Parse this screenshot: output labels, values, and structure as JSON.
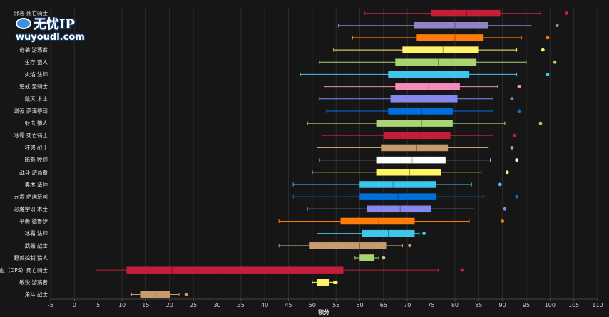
{
  "watermark": {
    "brand": "无忧IP",
    "url": "wuyoudl.com"
  },
  "chart_data": {
    "type": "boxplot",
    "title": "",
    "xlabel": "积分",
    "ylabel": "",
    "xlim": [
      -5,
      110
    ],
    "xticks": [
      -5,
      0,
      5,
      10,
      15,
      20,
      25,
      30,
      35,
      40,
      45,
      50,
      55,
      60,
      65,
      70,
      75,
      80,
      85,
      90,
      95,
      100,
      105,
      110
    ],
    "grid": true,
    "legend": "none",
    "series": [
      {
        "label": "邪恶 死亡骑士",
        "color": "#c41e3a",
        "whisker_low": 61,
        "q1": 75,
        "median": 82.5,
        "q3": 89.5,
        "whisker_high": 98,
        "outliers": [
          103.5
        ]
      },
      {
        "label": "",
        "color": "#9482c9",
        "whisker_low": 55.5,
        "q1": 71.5,
        "median": 80,
        "q3": 87,
        "whisker_high": 96,
        "outliers": [
          101.5
        ]
      },
      {
        "label": "",
        "color": "#ff7c0a",
        "whisker_low": 58.5,
        "q1": 72,
        "median": 80,
        "q3": 86,
        "whisker_high": 94,
        "outliers": [
          99.5
        ]
      },
      {
        "label": "奇袭 游荡者",
        "color": "#fff468",
        "whisker_low": 54.5,
        "q1": 69,
        "median": 77.5,
        "q3": 85,
        "whisker_high": 93,
        "outliers": [
          98.5
        ]
      },
      {
        "label": "生存 猎人",
        "color": "#aad372",
        "whisker_low": 51.5,
        "q1": 67.5,
        "median": 76.5,
        "q3": 84.5,
        "whisker_high": 95,
        "outliers": [
          101
        ]
      },
      {
        "label": "火焰 法师",
        "color": "#3fc7eb",
        "whisker_low": 47.5,
        "q1": 66,
        "median": 75,
        "q3": 83,
        "whisker_high": 93,
        "outliers": [
          99.5
        ]
      },
      {
        "label": "惩戒 圣骑士",
        "color": "#f48cba",
        "whisker_low": 52.5,
        "q1": 67.5,
        "median": 74.5,
        "q3": 81,
        "whisker_high": 89,
        "outliers": [
          93.5
        ]
      },
      {
        "label": "毁灭 术士",
        "color": "#8788ee",
        "whisker_low": 51.5,
        "q1": 66.5,
        "median": 73.5,
        "q3": 80.5,
        "whisker_high": 88,
        "outliers": [
          92
        ]
      },
      {
        "label": "增强 萨满祭司",
        "color": "#0070dd",
        "whisker_low": 53,
        "q1": 66,
        "median": 73,
        "q3": 79.5,
        "whisker_high": 88,
        "outliers": [
          93.5
        ]
      },
      {
        "label": "射击 猎人",
        "color": "#aad372",
        "whisker_low": 49,
        "q1": 63.5,
        "median": 73,
        "q3": 79.5,
        "whisker_high": 90.5,
        "outliers": [
          98
        ]
      },
      {
        "label": "冰霜 死亡骑士",
        "color": "#c41e3a",
        "whisker_low": 52,
        "q1": 65,
        "median": 72.5,
        "q3": 79,
        "whisker_high": 88,
        "outliers": [
          92.5
        ]
      },
      {
        "label": "狂怒 战士",
        "color": "#c69b6d",
        "whisker_low": 51,
        "q1": 64.5,
        "median": 72,
        "q3": 78.5,
        "whisker_high": 87,
        "outliers": [
          92
        ]
      },
      {
        "label": "暗影 牧师",
        "color": "#ffffff",
        "whisker_low": 51.5,
        "q1": 63.5,
        "median": 71,
        "q3": 78,
        "whisker_high": 87.5,
        "outliers": [
          93
        ]
      },
      {
        "label": "战斗 游荡者",
        "color": "#fff468",
        "whisker_low": 50,
        "q1": 63.5,
        "median": 70.5,
        "q3": 77,
        "whisker_high": 85.5,
        "outliers": [
          91
        ]
      },
      {
        "label": "奥术 法师",
        "color": "#3fc7eb",
        "whisker_low": 46,
        "q1": 60,
        "median": 67,
        "q3": 76,
        "whisker_high": 83.5,
        "outliers": [
          89.5
        ]
      },
      {
        "label": "元素 萨满祭司",
        "color": "#0070dd",
        "whisker_low": 46,
        "q1": 60,
        "median": 68,
        "q3": 76,
        "whisker_high": 86,
        "outliers": [
          93
        ]
      },
      {
        "label": "恶魔学识 术士",
        "color": "#8788ee",
        "whisker_low": 49,
        "q1": 61.5,
        "median": 68.5,
        "q3": 75,
        "whisker_high": 84,
        "outliers": [
          90.5
        ]
      },
      {
        "label": "平衡 德鲁伊",
        "color": "#ff7c0a",
        "whisker_low": 43,
        "q1": 56,
        "median": 64,
        "q3": 71.5,
        "whisker_high": 83,
        "outliers": [
          90
        ]
      },
      {
        "label": "冰霜 法师",
        "color": "#3fc7eb",
        "whisker_low": 51,
        "q1": 60.5,
        "median": 66,
        "q3": 71.5,
        "whisker_high": 72.5,
        "outliers": [
          73.5
        ]
      },
      {
        "label": "武器 战士",
        "color": "#c69b6d",
        "whisker_low": 43,
        "q1": 49.5,
        "median": 60,
        "q3": 65.5,
        "whisker_high": 69,
        "outliers": [
          70.5
        ]
      },
      {
        "label": "野兽控制 猎人",
        "color": "#aad372",
        "whisker_low": 59,
        "q1": 60,
        "median": 61.5,
        "q3": 63,
        "whisker_high": 64,
        "outliers": [
          65
        ]
      },
      {
        "label": "鲜血（DPS）死亡骑士",
        "color": "#c41e3a",
        "whisker_low": 4.5,
        "q1": 11,
        "median": 20.5,
        "q3": 56.5,
        "whisker_high": 76.5,
        "outliers": [
          81.5
        ]
      },
      {
        "label": "敏锐 游荡者",
        "color": "#fff468",
        "whisker_low": 50,
        "q1": 51,
        "median": 52.5,
        "q3": 53.5,
        "whisker_high": 54.5,
        "outliers": [
          55
        ]
      },
      {
        "label": "角斗 战士",
        "color": "#c69b6d",
        "whisker_low": 12,
        "q1": 14,
        "median": 17,
        "q3": 20,
        "whisker_high": 22,
        "outliers": [
          23.5
        ]
      }
    ]
  }
}
